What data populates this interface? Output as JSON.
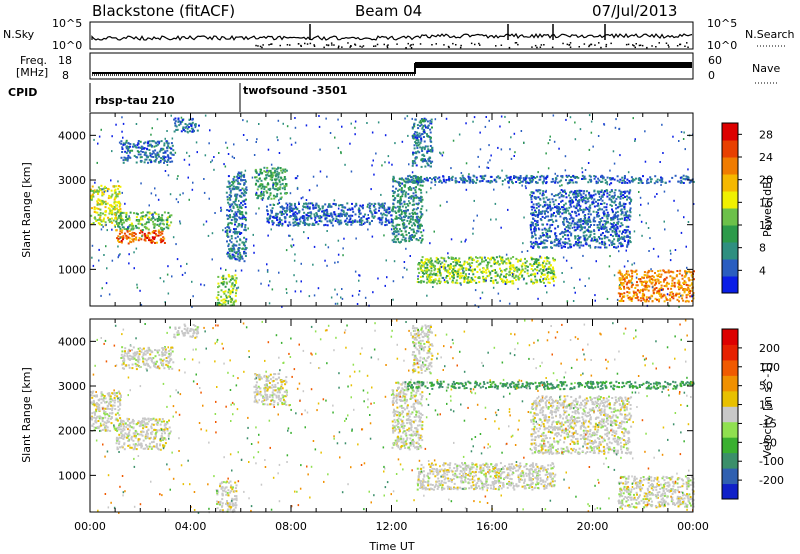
{
  "header": {
    "station": "Blackstone (fitACF)",
    "beam": "Beam 04",
    "date": "07/Jul/2013"
  },
  "summary_panels": {
    "nsky": {
      "label": "N.Sky",
      "top_tick": "10^5",
      "bottom_tick": "10^0"
    },
    "nsearch": {
      "label": "N.Search",
      "top_tick": "10^5",
      "bottom_tick": "10^0"
    },
    "freq": {
      "label_line1": "Freq.",
      "label_line2": "[MHz]",
      "ticks": [
        "18",
        "8"
      ]
    },
    "nave": {
      "label": "Nave",
      "ticks": [
        "60",
        "0"
      ]
    },
    "cpid": {
      "label": "CPID",
      "segments": [
        "rbsp-tau 210",
        "twofsound -3501"
      ]
    }
  },
  "chart_data": [
    {
      "type": "heatmap",
      "title": "",
      "xlabel": "Time UT",
      "ylabel": "Slant Range [km]",
      "xlim_hours": [
        0,
        24
      ],
      "ylim_km": [
        180,
        4500
      ],
      "x_tick_labels": [
        "00:00",
        "04:00",
        "08:00",
        "12:00",
        "16:00",
        "20:00",
        "00:00"
      ],
      "y_tick_values": [
        1000,
        2000,
        3000,
        4000
      ],
      "colorbar": {
        "label": "Power [dB]",
        "ticks": [
          4,
          8,
          12,
          16,
          20,
          24,
          28
        ],
        "range": [
          0,
          30
        ],
        "colors": [
          "#0a1ee6",
          "#2a5ec0",
          "#2f8f80",
          "#2c9a4a",
          "#6cc04a",
          "#f0f000",
          "#f5b800",
          "#f07c00",
          "#e84000",
          "#dd0000"
        ]
      },
      "regions": [
        {
          "t0": 0.0,
          "t1": 1.2,
          "r0": 2000,
          "r1": 2900,
          "value": 16
        },
        {
          "t0": 1.0,
          "t1": 3.0,
          "r0": 1600,
          "r1": 1900,
          "value": 24
        },
        {
          "t0": 1.0,
          "t1": 3.2,
          "r0": 1900,
          "r1": 2300,
          "value": 12
        },
        {
          "t0": 1.2,
          "t1": 3.3,
          "r0": 3400,
          "r1": 3900,
          "value": 6
        },
        {
          "t0": 3.3,
          "t1": 4.3,
          "r0": 4100,
          "r1": 4400,
          "value": 5
        },
        {
          "t0": 5.0,
          "t1": 5.8,
          "r0": 200,
          "r1": 900,
          "value": 14
        },
        {
          "t0": 5.4,
          "t1": 6.2,
          "r0": 1200,
          "r1": 3200,
          "value": 6
        },
        {
          "t0": 6.5,
          "t1": 7.8,
          "r0": 2600,
          "r1": 3300,
          "value": 10
        },
        {
          "t0": 12.0,
          "t1": 13.2,
          "r0": 1600,
          "r1": 3100,
          "value": 8
        },
        {
          "t0": 13.0,
          "t1": 18.5,
          "r0": 700,
          "r1": 1300,
          "value": 14
        },
        {
          "t0": 12.5,
          "t1": 24.0,
          "r0": 2950,
          "r1": 3120,
          "value": 5
        },
        {
          "t0": 21.0,
          "t1": 24.0,
          "r0": 300,
          "r1": 1000,
          "value": 22
        },
        {
          "t0": 12.8,
          "t1": 13.6,
          "r0": 3300,
          "r1": 4400,
          "value": 6
        },
        {
          "t0": 7.0,
          "t1": 12.0,
          "r0": 2000,
          "r1": 2500,
          "value": 5
        },
        {
          "t0": 17.5,
          "t1": 21.5,
          "r0": 1500,
          "r1": 2800,
          "value": 5
        }
      ]
    },
    {
      "type": "heatmap",
      "title": "",
      "xlabel": "Time UT",
      "ylabel": "Slant Range [km]",
      "xlim_hours": [
        0,
        24
      ],
      "ylim_km": [
        180,
        4500
      ],
      "x_tick_labels": [
        "00:00",
        "04:00",
        "08:00",
        "12:00",
        "16:00",
        "20:00",
        "00:00"
      ],
      "y_tick_values": [
        1000,
        2000,
        3000,
        4000
      ],
      "colorbar": {
        "label": "Velocity [m s^-1]",
        "ticks": [
          200,
          100,
          50,
          15,
          -15,
          -50,
          -100,
          -200
        ],
        "range": [
          -250,
          250
        ],
        "colors": [
          "#1020c8",
          "#3060b0",
          "#3b8f6a",
          "#3ab030",
          "#90e050",
          "#c8c8c8",
          "#e8c000",
          "#f09000",
          "#f05a00",
          "#e62000",
          "#dd0000"
        ]
      },
      "regions": [
        {
          "t0": 0.0,
          "t1": 1.2,
          "r0": 2000,
          "r1": 2900,
          "value": 0
        },
        {
          "t0": 1.0,
          "t1": 3.0,
          "r0": 1600,
          "r1": 1900,
          "value": 0
        },
        {
          "t0": 1.0,
          "t1": 3.2,
          "r0": 1900,
          "r1": 2300,
          "value": 0
        },
        {
          "t0": 1.2,
          "t1": 3.3,
          "r0": 3400,
          "r1": 3900,
          "value": 0
        },
        {
          "t0": 3.3,
          "t1": 4.3,
          "r0": 4100,
          "r1": 4400,
          "value": 0
        },
        {
          "t0": 5.0,
          "t1": 5.8,
          "r0": 200,
          "r1": 900,
          "value": 0
        },
        {
          "t0": 6.5,
          "t1": 7.8,
          "r0": 2600,
          "r1": 3300,
          "value": 0
        },
        {
          "t0": 12.0,
          "t1": 13.2,
          "r0": 1600,
          "r1": 3100,
          "value": 0
        },
        {
          "t0": 13.0,
          "t1": 18.5,
          "r0": 700,
          "r1": 1300,
          "value": 0
        },
        {
          "t0": 12.5,
          "t1": 24.0,
          "r0": 2950,
          "r1": 3120,
          "value": -120
        },
        {
          "t0": 21.0,
          "t1": 24.0,
          "r0": 300,
          "r1": 1000,
          "value": 0
        },
        {
          "t0": 12.8,
          "t1": 13.6,
          "r0": 3300,
          "r1": 4400,
          "value": 0
        },
        {
          "t0": 17.5,
          "t1": 21.5,
          "r0": 1500,
          "r1": 2800,
          "value": 0
        }
      ]
    }
  ]
}
